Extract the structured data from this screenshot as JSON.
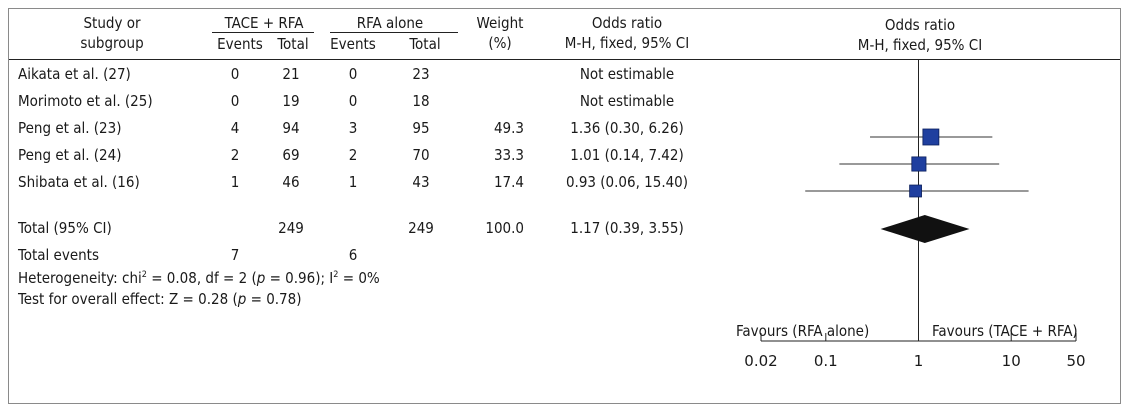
{
  "header": {
    "study_label_line1": "Study or",
    "study_label_line2": "subgroup",
    "group1": "TACE + RFA",
    "group2": "RFA alone",
    "events": "Events",
    "total": "Total",
    "weight_line1": "Weight",
    "weight_line2": "(%)",
    "or_line1": "Odds ratio",
    "or_line2": "M-H, fixed, 95% CI",
    "plot_line1": "Odds ratio",
    "plot_line2": "M-H, fixed, 95% CI"
  },
  "rows": [
    {
      "study": "Aikata et al. (27)",
      "e1": "0",
      "t1": "21",
      "e2": "0",
      "t2": "23",
      "weight": "",
      "or": "Not estimable"
    },
    {
      "study": "Morimoto et al. (25)",
      "e1": "0",
      "t1": "19",
      "e2": "0",
      "t2": "18",
      "weight": "",
      "or": "Not estimable"
    },
    {
      "study": "Peng  et al. (23)",
      "e1": "4",
      "t1": "94",
      "e2": "3",
      "t2": "95",
      "weight": "49.3",
      "or": "1.36 (0.30, 6.26)"
    },
    {
      "study": "Peng  et al. (24)",
      "e1": "2",
      "t1": "69",
      "e2": "2",
      "t2": "70",
      "weight": "33.3",
      "or": "1.01 (0.14, 7.42)"
    },
    {
      "study": "Shibata  et al. (16)",
      "e1": "1",
      "t1": "46",
      "e2": "1",
      "t2": "43",
      "weight": "17.4",
      "or": "0.93 (0.06, 15.40)"
    }
  ],
  "total_row": {
    "study": "Total (95% CI)",
    "t1": "249",
    "t2": "249",
    "weight": "100.0",
    "or": "1.17 (0.39, 3.55)"
  },
  "events_row": {
    "label": "Total events",
    "e1": "7",
    "e2": "6"
  },
  "footer": {
    "heterogeneity_a": "Heterogeneity: chi",
    "heterogeneity_sup": "2",
    "heterogeneity_b": " = 0.08, df = 2 (",
    "p": "p",
    "heterogeneity_c": " = 0.96); I",
    "heterogeneity_sup2": "2",
    "heterogeneity_d": " = 0%",
    "overall_a": "Test for overall effect: Z = 0.28 (",
    "overall_p": "p",
    "overall_b": " = 0.78)"
  },
  "axis": {
    "favours_left": "Favours (RFA alone)",
    "favours_right": "Favours (TACE + RFA)"
  },
  "chart_data": {
    "type": "forest",
    "scale": "log",
    "xlim": [
      0.02,
      50
    ],
    "ticks": [
      0.02,
      0.1,
      1,
      10,
      50
    ],
    "tick_labels": [
      "0.02",
      "0.1",
      "1",
      "10",
      "50"
    ],
    "studies": [
      {
        "name": "Peng  et al. (23)",
        "or": 1.36,
        "lo": 0.3,
        "hi": 6.26,
        "weight": 49.3
      },
      {
        "name": "Peng  et al. (24)",
        "or": 1.01,
        "lo": 0.14,
        "hi": 7.42,
        "weight": 33.3
      },
      {
        "name": "Shibata  et al. (16)",
        "or": 0.93,
        "lo": 0.06,
        "hi": 15.4,
        "weight": 17.4
      }
    ],
    "total": {
      "or": 1.17,
      "lo": 0.39,
      "hi": 3.55
    },
    "square_color": "#1f3f9f",
    "diamond_color": "#111111"
  }
}
